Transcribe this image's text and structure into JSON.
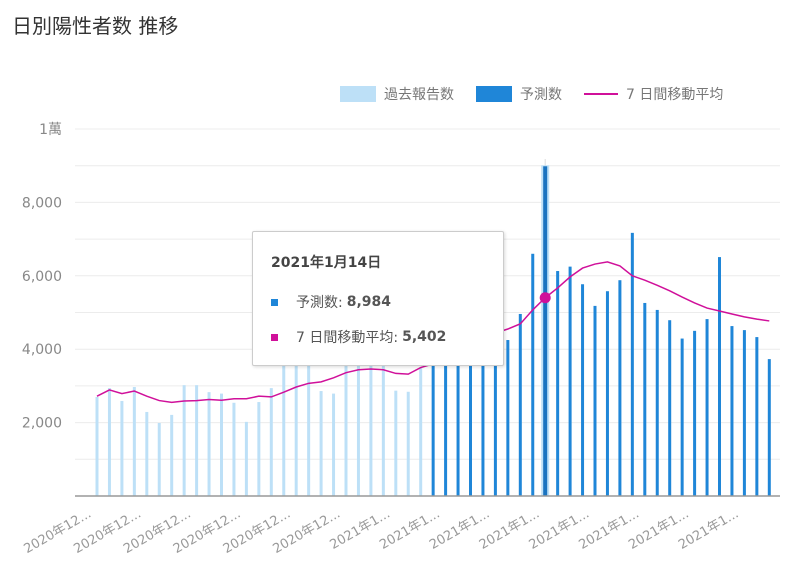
{
  "title": "日別陽性者数 推移",
  "legend": {
    "past": "過去報告数",
    "pred": "予測数",
    "avg": "7 日間移動平均"
  },
  "colors": {
    "past": "#bde0f7",
    "pred": "#1f86d8",
    "avg": "#d0109a",
    "grid": "#ececec",
    "axis": "#999"
  },
  "tooltip": {
    "date": "2021年1月14日",
    "pred_label": "予測数:",
    "pred_value": "8,984",
    "avg_label": "7 日間移動平均:",
    "avg_value": "5,402"
  },
  "chart_data": {
    "type": "bar",
    "title": "日別陽性者数 推移",
    "ylim": [
      0,
      10000
    ],
    "y_ticks": [
      {
        "value": 2000,
        "label": "2,000"
      },
      {
        "value": 4000,
        "label": "4,000"
      },
      {
        "value": 6000,
        "label": "6,000"
      },
      {
        "value": 8000,
        "label": "8,000"
      },
      {
        "value": 10000,
        "label": "1萬"
      }
    ],
    "x_tick_labels": [
      "2020年12...",
      "2020年12...",
      "2020年12...",
      "2020年12...",
      "2020年12...",
      "2020年12...",
      "2021年1...",
      "2021年1...",
      "2021年1...",
      "2021年1...",
      "2021年1...",
      "2021年1...",
      "2021年1...",
      "2021年1..."
    ],
    "highlight_index": 36,
    "series": [
      {
        "name": "過去報告数",
        "type": "bar",
        "values": [
          2700,
          2940,
          2590,
          2970,
          2290,
          1990,
          2210,
          3020,
          3020,
          2830,
          2790,
          2540,
          2020,
          2560,
          2940,
          3800,
          3900,
          3800,
          2860,
          2790,
          3600,
          3700,
          3700,
          3650,
          2870,
          2840,
          3500
        ]
      },
      {
        "name": "予測数",
        "type": "bar",
        "values": [
          3600,
          3600,
          3600,
          3600,
          3700,
          3700,
          4250,
          4960,
          6600,
          8984,
          6130,
          6250,
          5770,
          5180,
          5580,
          5880,
          7170,
          5260,
          5070,
          4790,
          4290,
          4500,
          4820,
          6510,
          4630,
          4520,
          4330,
          3730
        ]
      },
      {
        "name": "7 日間移動平均",
        "type": "line",
        "values": [
          2720,
          2890,
          2790,
          2860,
          2720,
          2600,
          2550,
          2590,
          2600,
          2630,
          2610,
          2650,
          2650,
          2720,
          2700,
          2830,
          2970,
          3070,
          3110,
          3220,
          3360,
          3440,
          3460,
          3440,
          3340,
          3320,
          3500,
          3600,
          3750,
          3900,
          4050,
          4200,
          4440,
          4550,
          4690,
          5070,
          5402,
          5670,
          5970,
          6210,
          6320,
          6380,
          6270,
          6000,
          5880,
          5740,
          5590,
          5420,
          5260,
          5120,
          5040,
          4960,
          4880,
          4820,
          4770
        ]
      }
    ]
  }
}
